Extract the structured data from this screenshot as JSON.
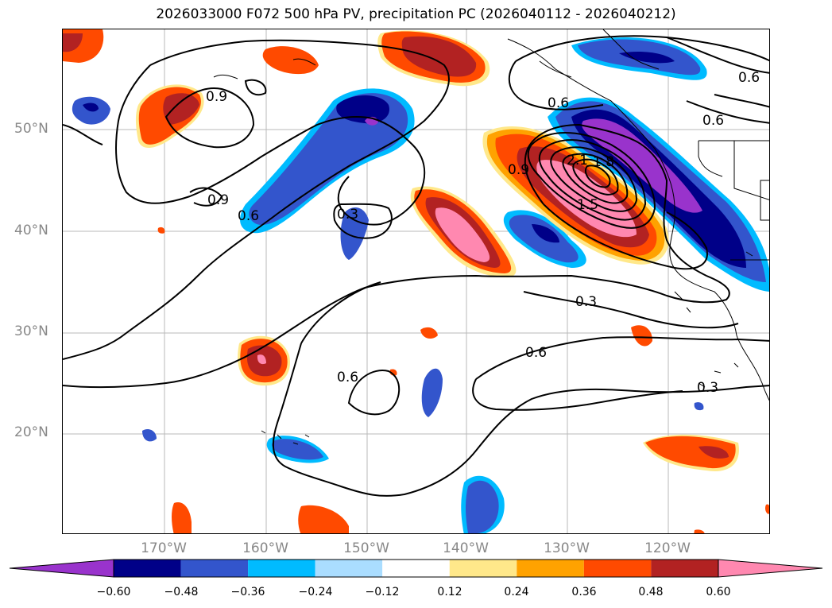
{
  "title": "2026033000 F072 500 hPa PV, precipitation PC (2026040112 - 2026040212)",
  "lat_labels": [
    "50°N",
    "40°N",
    "30°N",
    "20°N"
  ],
  "lon_labels": [
    "170°W",
    "160°W",
    "150°W",
    "140°W",
    "130°W",
    "120°W"
  ],
  "colorbar": {
    "ticks": [
      "−0.60",
      "−0.48",
      "−0.36",
      "−0.24",
      "−0.12",
      "0.12",
      "0.24",
      "0.36",
      "0.48",
      "0.60"
    ],
    "colors": [
      "#9933cc",
      "#000088",
      "#3355cc",
      "#00bbff",
      "#aaddff",
      "#ffffff",
      "#ffe88a",
      "#ffa200",
      "#ff4a00",
      "#b22222",
      "#ff88b0"
    ]
  },
  "contour_labels": [
    "0.9",
    "0.9",
    "0.6",
    "0.3",
    "0.9",
    "0.6",
    "0.6",
    "1.5",
    "2.1",
    "1.8",
    "0.6",
    "0.3",
    "0.6",
    "0.6",
    "0.3"
  ]
}
